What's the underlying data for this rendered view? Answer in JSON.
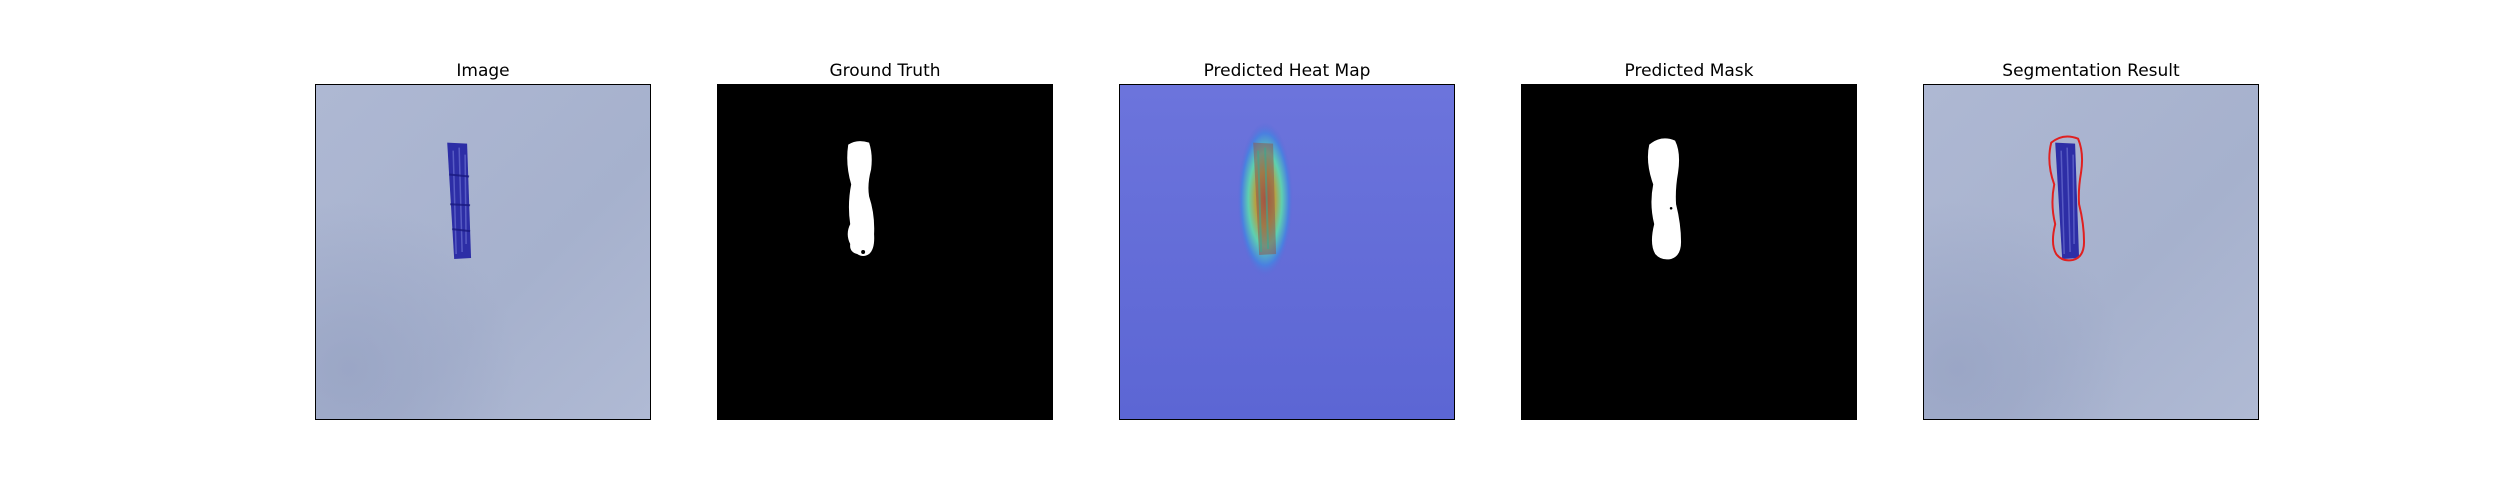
{
  "figure": {
    "panels": [
      {
        "id": "image",
        "title": "Image",
        "icon": "photo-icon"
      },
      {
        "id": "ground-truth",
        "title": "Ground Truth",
        "icon": "mask-icon"
      },
      {
        "id": "heatmap",
        "title": "Predicted Heat Map",
        "icon": "heatmap-icon"
      },
      {
        "id": "predicted-mask",
        "title": "Predicted Mask",
        "icon": "mask-icon"
      },
      {
        "id": "segmentation",
        "title": "Segmentation Result",
        "icon": "contour-icon"
      }
    ],
    "colors": {
      "background_tint": "#a9b4d0",
      "object_blue": "#2a2aa0",
      "mask_white": "#ffffff",
      "mask_black": "#000000",
      "heat_low": "#5f6ad8",
      "heat_high": "#c84a2a",
      "contour_red": "#e02020"
    }
  }
}
